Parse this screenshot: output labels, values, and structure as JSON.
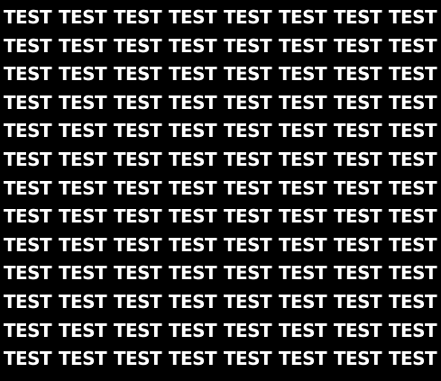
{
  "background_color": "#000000",
  "text_color": "#ffffff",
  "pattern": {
    "word": "TEST",
    "rows": 13,
    "columns": 8
  }
}
